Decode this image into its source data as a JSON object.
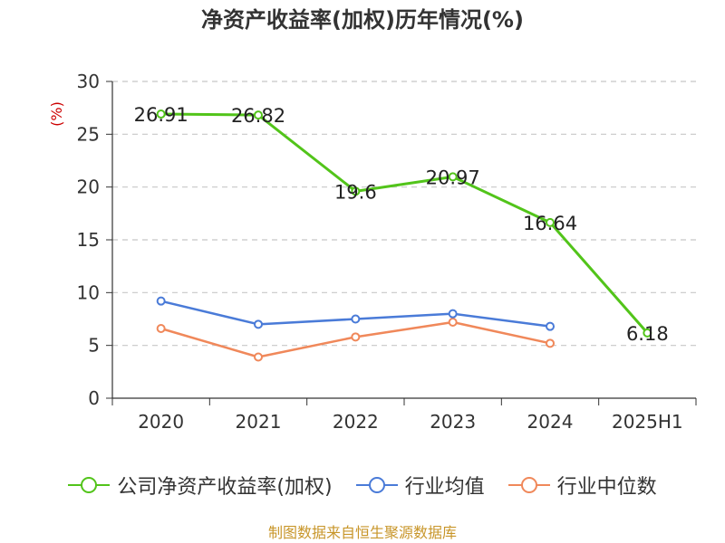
{
  "title": "净资产收益率(加权)历年情况(%)",
  "footer": "制图数据来自恒生聚源数据库",
  "colors": {
    "company": "#52c41a",
    "industry_avg": "#4a7bd8",
    "industry_median": "#f0885a",
    "grid": "#c8c8c8",
    "axis": "#333333",
    "unit_label": "#cc0000"
  },
  "chart_data": {
    "type": "line",
    "title": "净资产收益率(加权)历年情况(%)",
    "ylabel": "(%)",
    "xlabel": "",
    "categories": [
      "2020",
      "2021",
      "2022",
      "2023",
      "2024",
      "2025H1"
    ],
    "ylim": [
      0,
      30
    ],
    "yticks": [
      0,
      5,
      10,
      15,
      20,
      25,
      30
    ],
    "grid": true,
    "legend_position": "bottom",
    "series": [
      {
        "name": "公司净资产收益率(加权)",
        "color_key": "company",
        "values": [
          26.91,
          26.82,
          19.6,
          20.97,
          16.64,
          6.18
        ],
        "labels": [
          "26.91",
          "26.82",
          "19.6",
          "20.97",
          "16.64",
          "6.18"
        ]
      },
      {
        "name": "行业均值",
        "color_key": "industry_avg",
        "values": [
          9.2,
          7.0,
          7.5,
          8.0,
          6.8,
          null
        ]
      },
      {
        "name": "行业中位数",
        "color_key": "industry_median",
        "values": [
          6.6,
          3.9,
          5.8,
          7.2,
          5.2,
          null
        ]
      }
    ]
  }
}
